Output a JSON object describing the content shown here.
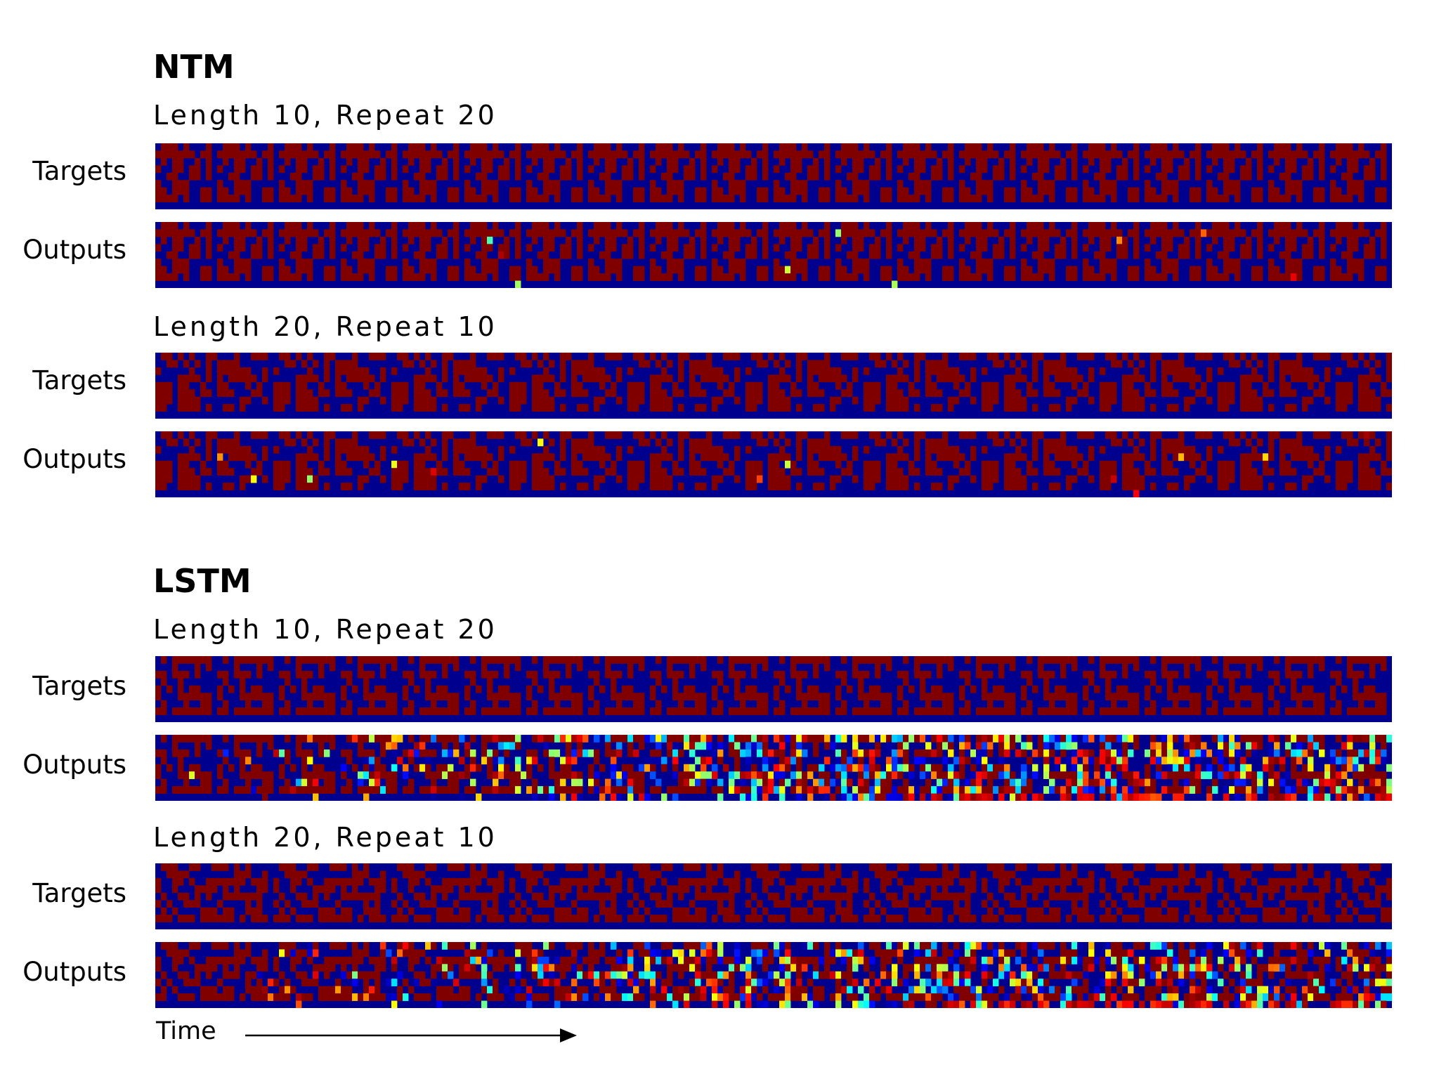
{
  "chart_data": {
    "type": "heatmap",
    "colormap": "jet",
    "colormap_stops": [
      "#00008f",
      "#0000ff",
      "#00ffff",
      "#ffff00",
      "#ff0000",
      "#800000"
    ],
    "value_range": [
      0,
      1
    ],
    "axis": {
      "xlabel": "Time"
    },
    "sections": [
      {
        "title": "NTM",
        "panels": [
          {
            "subtitle": "Length 10, Repeat 20",
            "rows": [
              {
                "label": "Targets",
                "pattern": "period",
                "seq_length": 10,
                "repeats": 20,
                "error_rate": 0.0
              },
              {
                "label": "Outputs",
                "pattern": "period",
                "seq_length": 10,
                "repeats": 20,
                "error_rate": 0.004
              }
            ]
          },
          {
            "subtitle": "Length 20, Repeat 10",
            "rows": [
              {
                "label": "Targets",
                "pattern": "period",
                "seq_length": 20,
                "repeats": 10,
                "error_rate": 0.0
              },
              {
                "label": "Outputs",
                "pattern": "period",
                "seq_length": 20,
                "repeats": 10,
                "error_rate": 0.005
              }
            ]
          }
        ]
      },
      {
        "title": "LSTM",
        "panels": [
          {
            "subtitle": "Length 10, Repeat 20",
            "rows": [
              {
                "label": "Targets",
                "pattern": "period",
                "seq_length": 10,
                "repeats": 20,
                "error_rate": 0.0
              },
              {
                "label": "Outputs",
                "pattern": "degrade",
                "seq_length": 10,
                "repeats": 20,
                "error_rate": 0.45
              }
            ]
          },
          {
            "subtitle": "Length 20, Repeat 10",
            "rows": [
              {
                "label": "Targets",
                "pattern": "period",
                "seq_length": 20,
                "repeats": 10,
                "error_rate": 0.0
              },
              {
                "label": "Outputs",
                "pattern": "degrade",
                "seq_length": 20,
                "repeats": 10,
                "error_rate": 0.35
              }
            ]
          }
        ]
      }
    ]
  }
}
